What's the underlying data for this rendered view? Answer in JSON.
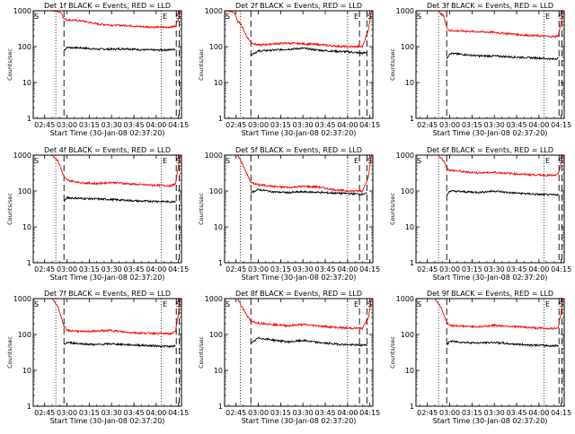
{
  "series_colors": {
    "events": "#000000",
    "lld": "#ff0000"
  },
  "chart_data": [
    {
      "type": "line",
      "title": "Det 1f BLACK = Events, RED = LLD",
      "xlabel": "Start Time (30-Jan-08 02:37:20)",
      "ylabel": "Counts/sec",
      "xlim": [
        "02:37:20",
        "04:17:00"
      ],
      "ylim": [
        1,
        1000
      ],
      "yscale": "log",
      "xticks": [
        "02:45",
        "03:00",
        "03:15",
        "03:30",
        "03:45",
        "04:00",
        "04:15"
      ],
      "yticks": [
        "1",
        "10",
        "100",
        "1000"
      ],
      "corner_labels": [
        "S",
        "E",
        "S"
      ],
      "markers": {
        "dotted": [
          "02:52:30",
          "04:03:30"
        ],
        "dashed": [
          "02:58:00",
          "04:13:30",
          "04:15:30"
        ]
      },
      "series": [
        {
          "legend": "Events",
          "x": [
            "02:58:00",
            "03:00:00",
            "03:10:00",
            "03:20:00",
            "03:30:00",
            "03:40:00",
            "03:50:00",
            "04:00:00",
            "04:10:00",
            "04:13:00"
          ],
          "y": [
            80,
            95,
            92,
            85,
            85,
            88,
            82,
            80,
            82,
            85
          ]
        },
        {
          "legend": "LLD",
          "x": [
            "02:38:00",
            "02:50:00",
            "02:56:00",
            "02:58:00",
            "03:00:00",
            "03:10:00",
            "03:20:00",
            "03:30:00",
            "03:40:00",
            "03:50:00",
            "04:00:00",
            "04:10:00",
            "04:13:00",
            "04:15:00",
            "04:16:00"
          ],
          "y": [
            1000,
            1000,
            900,
            600,
            560,
            520,
            430,
            400,
            390,
            360,
            350,
            350,
            380,
            600,
            1000
          ]
        }
      ]
    },
    {
      "type": "line",
      "title": "Det 2f BLACK = Events, RED = LLD",
      "xlabel": "Start Time (30-Jan-08 02:37:20)",
      "ylabel": "Counts/sec",
      "xlim": [
        "02:37:20",
        "04:17:00"
      ],
      "ylim": [
        1,
        1000
      ],
      "yscale": "log",
      "xticks": [
        "02:45",
        "03:00",
        "03:15",
        "03:30",
        "03:45",
        "04:00",
        "04:15"
      ],
      "yticks": [
        "1",
        "10",
        "100",
        "1000"
      ],
      "corner_labels": [
        "S",
        "E",
        "S"
      ],
      "markers": {
        "dotted": [
          "02:48:00",
          "04:00:00"
        ],
        "dashed": [
          "02:55:00",
          "04:08:00",
          "04:13:00"
        ]
      },
      "series": [
        {
          "legend": "Events",
          "x": [
            "02:55:00",
            "03:00:00",
            "03:10:00",
            "03:20:00",
            "03:30:00",
            "03:40:00",
            "03:50:00",
            "04:00:00",
            "04:10:00",
            "04:13:00"
          ],
          "y": [
            60,
            75,
            80,
            85,
            90,
            80,
            75,
            72,
            65,
            70
          ]
        },
        {
          "legend": "LLD",
          "x": [
            "02:38:00",
            "02:44:00",
            "02:46:00",
            "02:48:00",
            "02:52:00",
            "02:55:00",
            "03:00:00",
            "03:10:00",
            "03:20:00",
            "03:30:00",
            "03:40:00",
            "03:50:00",
            "04:00:00",
            "04:10:00",
            "04:14:00",
            "04:16:00"
          ],
          "y": [
            1000,
            900,
            500,
            450,
            200,
            130,
            110,
            120,
            125,
            120,
            115,
            105,
            100,
            100,
            300,
            1000
          ]
        }
      ]
    },
    {
      "type": "line",
      "title": "Det 3f BLACK = Events, RED = LLD",
      "xlabel": "Start Time (30-Jan-08 02:37:20)",
      "ylabel": "Counts/sec",
      "xlim": [
        "02:37:20",
        "04:17:00"
      ],
      "ylim": [
        1,
        1000
      ],
      "yscale": "log",
      "xticks": [
        "02:45",
        "03:00",
        "03:15",
        "03:30",
        "03:45",
        "04:00",
        "04:15"
      ],
      "yticks": [
        "1",
        "10",
        "100",
        "1000"
      ],
      "corner_labels": [
        "S",
        "E",
        "S"
      ],
      "markers": {
        "dotted": [
          "02:52:30",
          "04:03:30"
        ],
        "dashed": [
          "02:58:00",
          "04:13:30",
          "04:15:30"
        ]
      },
      "series": [
        {
          "legend": "Events",
          "x": [
            "02:58:00",
            "03:00:00",
            "03:10:00",
            "03:20:00",
            "03:30:00",
            "03:40:00",
            "03:50:00",
            "04:00:00",
            "04:10:00",
            "04:13:00"
          ],
          "y": [
            45,
            65,
            60,
            55,
            55,
            52,
            50,
            48,
            45,
            48
          ]
        },
        {
          "legend": "LLD",
          "x": [
            "02:38:00",
            "02:52:00",
            "02:56:00",
            "02:58:00",
            "03:00:00",
            "03:10:00",
            "03:20:00",
            "03:30:00",
            "03:40:00",
            "03:50:00",
            "04:00:00",
            "04:10:00",
            "04:13:00",
            "04:15:00",
            "04:16:00"
          ],
          "y": [
            1000,
            1000,
            700,
            350,
            280,
            270,
            260,
            250,
            230,
            210,
            200,
            190,
            200,
            500,
            1000
          ]
        }
      ]
    },
    {
      "type": "line",
      "title": "Det 4f BLACK = Events, RED = LLD",
      "xlabel": "Start Time (30-Jan-08 02:37:20)",
      "ylabel": "Counts/sec",
      "xlim": [
        "02:37:20",
        "04:17:00"
      ],
      "ylim": [
        1,
        1000
      ],
      "yscale": "log",
      "xticks": [
        "02:45",
        "03:00",
        "03:15",
        "03:30",
        "03:45",
        "04:00",
        "04:15"
      ],
      "yticks": [
        "1",
        "10",
        "100",
        "1000"
      ],
      "corner_labels": [
        "S",
        "E",
        "S"
      ],
      "markers": {
        "dotted": [
          "02:52:30",
          "04:03:30"
        ],
        "dashed": [
          "02:58:00",
          "04:13:30",
          "04:15:30"
        ]
      },
      "series": [
        {
          "legend": "Events",
          "x": [
            "02:58:00",
            "03:00:00",
            "03:10:00",
            "03:20:00",
            "03:30:00",
            "03:40:00",
            "03:50:00",
            "04:00:00",
            "04:10:00",
            "04:13:00"
          ],
          "y": [
            50,
            65,
            62,
            60,
            58,
            55,
            52,
            52,
            50,
            52
          ]
        },
        {
          "legend": "LLD",
          "x": [
            "02:38:00",
            "02:50:00",
            "02:54:00",
            "02:58:00",
            "03:00:00",
            "03:10:00",
            "03:20:00",
            "03:30:00",
            "03:40:00",
            "03:50:00",
            "04:00:00",
            "04:10:00",
            "04:13:00",
            "04:15:00",
            "04:16:00"
          ],
          "y": [
            1000,
            1000,
            700,
            250,
            200,
            170,
            160,
            175,
            160,
            150,
            145,
            140,
            160,
            500,
            1000
          ]
        }
      ]
    },
    {
      "type": "line",
      "title": "Det 5f BLACK = Events, RED = LLD",
      "xlabel": "Start Time (30-Jan-08 02:37:20)",
      "ylabel": "Counts/sec",
      "xlim": [
        "02:37:20",
        "04:17:00"
      ],
      "ylim": [
        1,
        1000
      ],
      "yscale": "log",
      "xticks": [
        "02:45",
        "03:00",
        "03:15",
        "03:30",
        "03:45",
        "04:00",
        "04:15"
      ],
      "yticks": [
        "1",
        "10",
        "100",
        "1000"
      ],
      "corner_labels": [
        "S",
        "E",
        "S"
      ],
      "markers": {
        "dotted": [
          "02:48:00",
          "04:00:00"
        ],
        "dashed": [
          "02:55:00",
          "04:08:00",
          "04:13:00"
        ]
      },
      "series": [
        {
          "legend": "Events",
          "x": [
            "02:55:00",
            "03:00:00",
            "03:10:00",
            "03:20:00",
            "03:30:00",
            "03:40:00",
            "03:50:00",
            "04:00:00",
            "04:10:00",
            "04:13:00"
          ],
          "y": [
            90,
            110,
            95,
            90,
            95,
            92,
            88,
            85,
            82,
            85
          ]
        },
        {
          "legend": "LLD",
          "x": [
            "02:38:00",
            "02:46:00",
            "02:50:00",
            "02:55:00",
            "03:00:00",
            "03:10:00",
            "03:20:00",
            "03:30:00",
            "03:40:00",
            "03:50:00",
            "04:00:00",
            "04:10:00",
            "04:14:00",
            "04:16:00"
          ],
          "y": [
            1000,
            1000,
            500,
            170,
            150,
            135,
            125,
            135,
            130,
            110,
            100,
            100,
            250,
            1000
          ]
        }
      ]
    },
    {
      "type": "line",
      "title": "Det 6f BLACK = Events, RED = LLD",
      "xlabel": "Start Time (30-Jan-08 02:37:20)",
      "ylabel": "Counts/sec",
      "xlim": [
        "02:37:20",
        "04:17:00"
      ],
      "ylim": [
        1,
        1000
      ],
      "yscale": "log",
      "xticks": [
        "02:45",
        "03:00",
        "03:15",
        "03:30",
        "03:45",
        "04:00",
        "04:15"
      ],
      "yticks": [
        "1",
        "10",
        "100",
        "1000"
      ],
      "corner_labels": [
        "S",
        "E",
        "S"
      ],
      "markers": {
        "dotted": [
          "02:52:30",
          "04:03:30"
        ],
        "dashed": [
          "02:58:00",
          "04:13:30",
          "04:15:30"
        ]
      },
      "series": [
        {
          "legend": "Events",
          "x": [
            "02:58:00",
            "03:00:00",
            "03:10:00",
            "03:20:00",
            "03:30:00",
            "03:40:00",
            "03:50:00",
            "04:00:00",
            "04:10:00",
            "04:13:00"
          ],
          "y": [
            75,
            100,
            95,
            92,
            100,
            90,
            85,
            80,
            78,
            80
          ]
        },
        {
          "legend": "LLD",
          "x": [
            "02:38:00",
            "02:52:00",
            "02:56:00",
            "02:58:00",
            "03:00:00",
            "03:10:00",
            "03:20:00",
            "03:30:00",
            "03:40:00",
            "03:50:00",
            "04:00:00",
            "04:10:00",
            "04:13:00",
            "04:15:00",
            "04:16:00"
          ],
          "y": [
            1000,
            1000,
            700,
            450,
            380,
            340,
            320,
            330,
            310,
            290,
            280,
            270,
            290,
            600,
            1000
          ]
        }
      ]
    },
    {
      "type": "line",
      "title": "Det 7f BLACK = Events, RED = LLD",
      "xlabel": "Start Time (30-Jan-08 02:37:20)",
      "ylabel": "Counts/sec",
      "xlim": [
        "02:37:20",
        "04:17:00"
      ],
      "ylim": [
        1,
        1000
      ],
      "yscale": "log",
      "xticks": [
        "02:45",
        "03:00",
        "03:15",
        "03:30",
        "03:45",
        "04:00",
        "04:15"
      ],
      "yticks": [
        "1",
        "10",
        "100",
        "1000"
      ],
      "corner_labels": [
        "S",
        "E",
        "S"
      ],
      "markers": {
        "dotted": [
          "02:52:30",
          "04:03:30"
        ],
        "dashed": [
          "02:58:00",
          "04:13:30",
          "04:15:30"
        ]
      },
      "series": [
        {
          "legend": "Events",
          "x": [
            "02:58:00",
            "03:00:00",
            "03:10:00",
            "03:20:00",
            "03:30:00",
            "03:40:00",
            "03:50:00",
            "04:00:00",
            "04:10:00",
            "04:13:00"
          ],
          "y": [
            50,
            60,
            55,
            52,
            55,
            52,
            50,
            48,
            46,
            48
          ]
        },
        {
          "legend": "LLD",
          "x": [
            "02:38:00",
            "02:50:00",
            "02:54:00",
            "02:58:00",
            "03:00:00",
            "03:10:00",
            "03:20:00",
            "03:30:00",
            "03:40:00",
            "03:50:00",
            "04:00:00",
            "04:10:00",
            "04:13:00",
            "04:15:00",
            "04:16:00"
          ],
          "y": [
            1000,
            1000,
            600,
            170,
            130,
            120,
            125,
            130,
            115,
            110,
            108,
            105,
            120,
            400,
            1000
          ]
        }
      ]
    },
    {
      "type": "line",
      "title": "Det 8f BLACK = Events, RED = LLD",
      "xlabel": "Start Time (30-Jan-08 02:37:20)",
      "ylabel": "Counts/sec",
      "xlim": [
        "02:37:20",
        "04:17:00"
      ],
      "ylim": [
        1,
        1000
      ],
      "yscale": "log",
      "xticks": [
        "02:45",
        "03:00",
        "03:15",
        "03:30",
        "03:45",
        "04:00",
        "04:15"
      ],
      "yticks": [
        "1",
        "10",
        "100",
        "1000"
      ],
      "corner_labels": [
        "S",
        "E",
        "S"
      ],
      "markers": {
        "dotted": [
          "02:48:00",
          "04:00:00"
        ],
        "dashed": [
          "02:55:00",
          "04:08:00",
          "04:13:00"
        ]
      },
      "series": [
        {
          "legend": "Events",
          "x": [
            "02:55:00",
            "03:00:00",
            "03:10:00",
            "03:20:00",
            "03:30:00",
            "03:40:00",
            "03:50:00",
            "04:00:00",
            "04:10:00",
            "04:13:00"
          ],
          "y": [
            55,
            80,
            70,
            62,
            68,
            60,
            55,
            52,
            50,
            52
          ]
        },
        {
          "legend": "LLD",
          "x": [
            "02:38:00",
            "02:46:00",
            "02:50:00",
            "02:55:00",
            "03:00:00",
            "03:10:00",
            "03:20:00",
            "03:30:00",
            "03:40:00",
            "03:50:00",
            "04:00:00",
            "04:10:00",
            "04:14:00",
            "04:16:00"
          ],
          "y": [
            1000,
            1000,
            500,
            230,
            210,
            190,
            175,
            190,
            175,
            160,
            150,
            150,
            300,
            1000
          ]
        }
      ]
    },
    {
      "type": "line",
      "title": "Det 9f BLACK = Events, RED = LLD",
      "xlabel": "Start Time (30-Jan-08 02:37:20)",
      "ylabel": "Counts/sec",
      "xlim": [
        "02:37:20",
        "04:17:00"
      ],
      "ylim": [
        1,
        1000
      ],
      "yscale": "log",
      "xticks": [
        "02:45",
        "03:00",
        "03:15",
        "03:30",
        "03:45",
        "04:00",
        "04:15"
      ],
      "yticks": [
        "1",
        "10",
        "100",
        "1000"
      ],
      "corner_labels": [
        "S",
        "E",
        "S"
      ],
      "markers": {
        "dotted": [
          "02:52:30",
          "04:03:30"
        ],
        "dashed": [
          "02:58:00",
          "04:13:30",
          "04:15:30"
        ]
      },
      "series": [
        {
          "legend": "Events",
          "x": [
            "02:58:00",
            "03:00:00",
            "03:10:00",
            "03:20:00",
            "03:30:00",
            "03:40:00",
            "03:50:00",
            "04:00:00",
            "04:10:00",
            "04:13:00"
          ],
          "y": [
            50,
            65,
            60,
            58,
            60,
            55,
            52,
            50,
            48,
            50
          ]
        },
        {
          "legend": "LLD",
          "x": [
            "02:38:00",
            "02:50:00",
            "02:54:00",
            "02:58:00",
            "03:00:00",
            "03:10:00",
            "03:20:00",
            "03:30:00",
            "03:40:00",
            "03:50:00",
            "04:00:00",
            "04:10:00",
            "04:13:00",
            "04:15:00",
            "04:16:00"
          ],
          "y": [
            1000,
            1000,
            600,
            220,
            180,
            170,
            165,
            180,
            170,
            160,
            150,
            145,
            160,
            450,
            1000
          ]
        }
      ]
    }
  ]
}
